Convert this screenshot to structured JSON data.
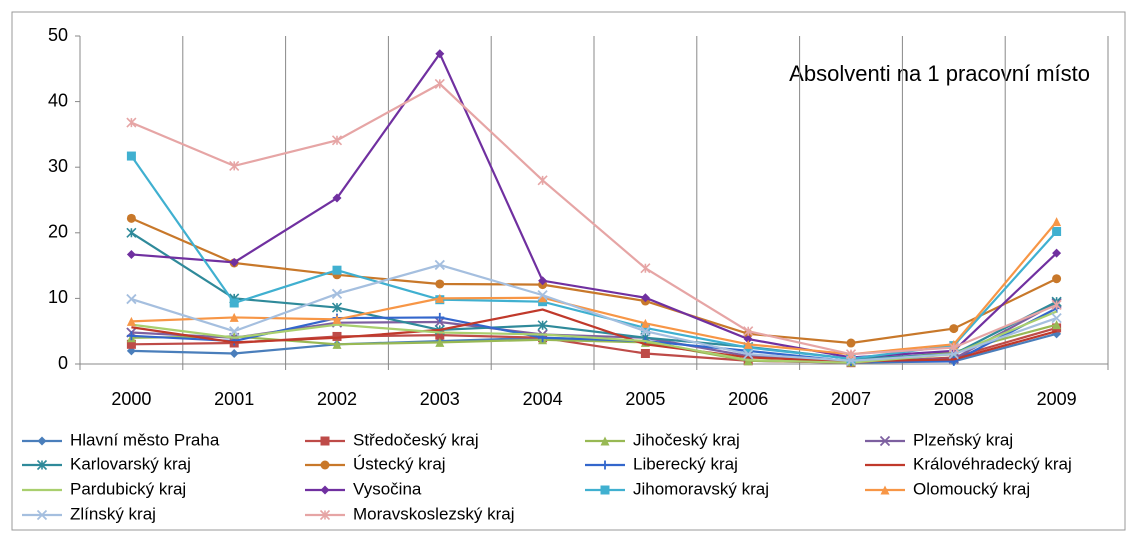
{
  "chart_data": {
    "type": "line",
    "title": "Absolventi na 1 pracovní místo",
    "categories": [
      "2000",
      "2001",
      "2002",
      "2003",
      "2004",
      "2005",
      "2006",
      "2007",
      "2008",
      "2009"
    ],
    "ylim": [
      0,
      50
    ],
    "yticks": [
      0,
      10,
      20,
      30,
      40,
      50
    ],
    "series": [
      {
        "name": "Hlavní město Praha",
        "color": "#4a7ebb",
        "marker": "diamond",
        "values": [
          2.0,
          1.6,
          3.0,
          3.5,
          4.0,
          3.5,
          0.5,
          0.2,
          0.4,
          4.6
        ]
      },
      {
        "name": "Středočeský kraj",
        "color": "#be4b48",
        "marker": "square",
        "values": [
          3.0,
          3.2,
          4.2,
          4.4,
          4.0,
          1.6,
          0.5,
          0.2,
          1.0,
          5.5
        ]
      },
      {
        "name": "Jihočeský kraj",
        "color": "#98b954",
        "marker": "triangle",
        "values": [
          4.0,
          4.2,
          3.0,
          3.3,
          3.7,
          3.3,
          0.5,
          0.3,
          1.8,
          6.0
        ]
      },
      {
        "name": "Plzeňský kraj",
        "color": "#7d60a0",
        "marker": "x",
        "values": [
          4.8,
          4.0,
          6.3,
          6.4,
          4.5,
          4.0,
          1.2,
          0.5,
          0.8,
          9.3
        ]
      },
      {
        "name": "Karlovarský kraj",
        "color": "#2f8a9a",
        "marker": "star",
        "values": [
          20.0,
          10.0,
          8.6,
          5.2,
          5.9,
          4.0,
          2.6,
          0.8,
          1.5,
          9.5
        ]
      },
      {
        "name": "Ústecký kraj",
        "color": "#c8782a",
        "marker": "circle",
        "values": [
          22.2,
          15.4,
          13.6,
          12.2,
          12.1,
          9.6,
          4.6,
          3.2,
          5.4,
          13.0
        ]
      },
      {
        "name": "Liberecký kraj",
        "color": "#3366cc",
        "marker": "plus",
        "values": [
          4.3,
          3.5,
          7.0,
          7.1,
          4.0,
          3.5,
          2.0,
          0.4,
          0.4,
          8.5
        ]
      },
      {
        "name": "Královéhradecký kraj",
        "color": "#c0392b",
        "marker": "none",
        "values": [
          5.6,
          3.3,
          4.0,
          5.2,
          8.3,
          3.0,
          1.0,
          0.4,
          0.7,
          5.0
        ]
      },
      {
        "name": "Pardubický kraj",
        "color": "#a9cf6e",
        "marker": "none",
        "values": [
          6.0,
          4.0,
          6.0,
          4.8,
          4.5,
          3.5,
          0.6,
          0.2,
          1.5,
          8.0
        ]
      },
      {
        "name": "Vysočina",
        "color": "#7030a0",
        "marker": "diamond",
        "values": [
          16.7,
          15.5,
          25.3,
          47.3,
          12.7,
          10.1,
          3.8,
          1.0,
          2.0,
          16.9
        ]
      },
      {
        "name": "Jihomoravský kraj",
        "color": "#40b0d0",
        "marker": "square",
        "values": [
          31.7,
          9.3,
          14.3,
          9.8,
          9.5,
          5.5,
          2.5,
          0.8,
          2.8,
          20.2
        ]
      },
      {
        "name": "Olomoucký kraj",
        "color": "#f79646",
        "marker": "triangle",
        "values": [
          6.5,
          7.1,
          6.8,
          10.0,
          10.1,
          6.2,
          3.0,
          1.5,
          3.0,
          21.7
        ]
      },
      {
        "name": "Zlínský kraj",
        "color": "#a5bfdf",
        "marker": "x",
        "values": [
          9.9,
          5.0,
          10.7,
          15.1,
          10.5,
          5.0,
          1.5,
          0.5,
          1.5,
          7.0
        ]
      },
      {
        "name": "Moravskoslezský kraj",
        "color": "#e6a5a5",
        "marker": "star",
        "values": [
          36.8,
          30.2,
          34.1,
          42.7,
          28.0,
          14.6,
          5.0,
          1.5,
          2.5,
          9.0
        ]
      }
    ]
  }
}
